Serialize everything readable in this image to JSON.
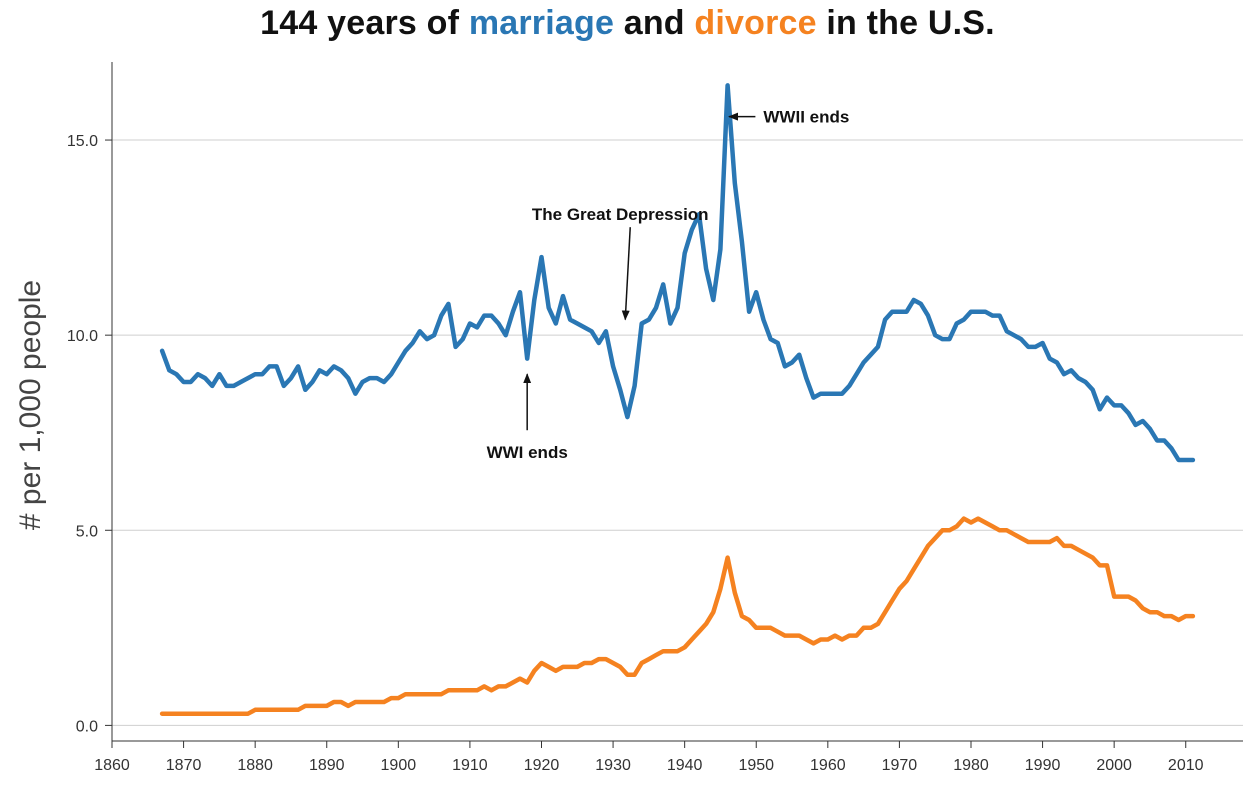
{
  "title": {
    "part1": "144 years of ",
    "marriage_word": "marriage",
    "part2": " and ",
    "divorce_word": "divorce",
    "part3": " in the U.S."
  },
  "colors": {
    "marriage": "#2a77b4",
    "divorce": "#f58220",
    "grid": "#cfcfcf",
    "axis": "#333333"
  },
  "chart_data": {
    "type": "line",
    "title": "144 years of marriage and divorce in the U.S.",
    "xlabel": "",
    "ylabel": "# per 1,000 people",
    "xlim": [
      1860,
      2018
    ],
    "ylim": [
      -0.4,
      17
    ],
    "x_ticks": [
      1860,
      1870,
      1880,
      1890,
      1900,
      1910,
      1920,
      1930,
      1940,
      1950,
      1960,
      1970,
      1980,
      1990,
      2000,
      2010
    ],
    "y_ticks": [
      0.0,
      5.0,
      10.0,
      15.0
    ],
    "y_tick_labels": [
      "0.0",
      "5.0",
      "10.0",
      "15.0"
    ],
    "grid": "horizontal",
    "series": [
      {
        "key": "marriage",
        "color": "#2a77b4",
        "points": [
          [
            1867,
            9.6
          ],
          [
            1868,
            9.1
          ],
          [
            1869,
            9.0
          ],
          [
            1870,
            8.8
          ],
          [
            1871,
            8.8
          ],
          [
            1872,
            9.0
          ],
          [
            1873,
            8.9
          ],
          [
            1874,
            8.7
          ],
          [
            1875,
            9.0
          ],
          [
            1876,
            8.7
          ],
          [
            1877,
            8.7
          ],
          [
            1878,
            8.8
          ],
          [
            1879,
            8.9
          ],
          [
            1880,
            9.0
          ],
          [
            1881,
            9.0
          ],
          [
            1882,
            9.2
          ],
          [
            1883,
            9.2
          ],
          [
            1884,
            8.7
          ],
          [
            1885,
            8.9
          ],
          [
            1886,
            9.2
          ],
          [
            1887,
            8.6
          ],
          [
            1888,
            8.8
          ],
          [
            1889,
            9.1
          ],
          [
            1890,
            9.0
          ],
          [
            1891,
            9.2
          ],
          [
            1892,
            9.1
          ],
          [
            1893,
            8.9
          ],
          [
            1894,
            8.5
          ],
          [
            1895,
            8.8
          ],
          [
            1896,
            8.9
          ],
          [
            1897,
            8.9
          ],
          [
            1898,
            8.8
          ],
          [
            1899,
            9.0
          ],
          [
            1900,
            9.3
          ],
          [
            1901,
            9.6
          ],
          [
            1902,
            9.8
          ],
          [
            1903,
            10.1
          ],
          [
            1904,
            9.9
          ],
          [
            1905,
            10.0
          ],
          [
            1906,
            10.5
          ],
          [
            1907,
            10.8
          ],
          [
            1908,
            9.7
          ],
          [
            1909,
            9.9
          ],
          [
            1910,
            10.3
          ],
          [
            1911,
            10.2
          ],
          [
            1912,
            10.5
          ],
          [
            1913,
            10.5
          ],
          [
            1914,
            10.3
          ],
          [
            1915,
            10.0
          ],
          [
            1916,
            10.6
          ],
          [
            1917,
            11.1
          ],
          [
            1918,
            9.4
          ],
          [
            1919,
            10.9
          ],
          [
            1920,
            12.0
          ],
          [
            1921,
            10.7
          ],
          [
            1922,
            10.3
          ],
          [
            1923,
            11.0
          ],
          [
            1924,
            10.4
          ],
          [
            1925,
            10.3
          ],
          [
            1926,
            10.2
          ],
          [
            1927,
            10.1
          ],
          [
            1928,
            9.8
          ],
          [
            1929,
            10.1
          ],
          [
            1930,
            9.2
          ],
          [
            1931,
            8.6
          ],
          [
            1932,
            7.9
          ],
          [
            1933,
            8.7
          ],
          [
            1934,
            10.3
          ],
          [
            1935,
            10.4
          ],
          [
            1936,
            10.7
          ],
          [
            1937,
            11.3
          ],
          [
            1938,
            10.3
          ],
          [
            1939,
            10.7
          ],
          [
            1940,
            12.1
          ],
          [
            1941,
            12.7
          ],
          [
            1942,
            13.1
          ],
          [
            1943,
            11.7
          ],
          [
            1944,
            10.9
          ],
          [
            1945,
            12.2
          ],
          [
            1946,
            16.4
          ],
          [
            1947,
            13.9
          ],
          [
            1948,
            12.4
          ],
          [
            1949,
            10.6
          ],
          [
            1950,
            11.1
          ],
          [
            1951,
            10.4
          ],
          [
            1952,
            9.9
          ],
          [
            1953,
            9.8
          ],
          [
            1954,
            9.2
          ],
          [
            1955,
            9.3
          ],
          [
            1956,
            9.5
          ],
          [
            1957,
            8.9
          ],
          [
            1958,
            8.4
          ],
          [
            1959,
            8.5
          ],
          [
            1960,
            8.5
          ],
          [
            1961,
            8.5
          ],
          [
            1962,
            8.5
          ],
          [
            1963,
            8.7
          ],
          [
            1964,
            9.0
          ],
          [
            1965,
            9.3
          ],
          [
            1966,
            9.5
          ],
          [
            1967,
            9.7
          ],
          [
            1968,
            10.4
          ],
          [
            1969,
            10.6
          ],
          [
            1970,
            10.6
          ],
          [
            1971,
            10.6
          ],
          [
            1972,
            10.9
          ],
          [
            1973,
            10.8
          ],
          [
            1974,
            10.5
          ],
          [
            1975,
            10.0
          ],
          [
            1976,
            9.9
          ],
          [
            1977,
            9.9
          ],
          [
            1978,
            10.3
          ],
          [
            1979,
            10.4
          ],
          [
            1980,
            10.6
          ],
          [
            1981,
            10.6
          ],
          [
            1982,
            10.6
          ],
          [
            1983,
            10.5
          ],
          [
            1984,
            10.5
          ],
          [
            1985,
            10.1
          ],
          [
            1986,
            10.0
          ],
          [
            1987,
            9.9
          ],
          [
            1988,
            9.7
          ],
          [
            1989,
            9.7
          ],
          [
            1990,
            9.8
          ],
          [
            1991,
            9.4
          ],
          [
            1992,
            9.3
          ],
          [
            1993,
            9.0
          ],
          [
            1994,
            9.1
          ],
          [
            1995,
            8.9
          ],
          [
            1996,
            8.8
          ],
          [
            1997,
            8.6
          ],
          [
            1998,
            8.1
          ],
          [
            1999,
            8.4
          ],
          [
            2000,
            8.2
          ],
          [
            2001,
            8.2
          ],
          [
            2002,
            8.0
          ],
          [
            2003,
            7.7
          ],
          [
            2004,
            7.8
          ],
          [
            2005,
            7.6
          ],
          [
            2006,
            7.3
          ],
          [
            2007,
            7.3
          ],
          [
            2008,
            7.1
          ],
          [
            2009,
            6.8
          ],
          [
            2010,
            6.8
          ],
          [
            2011,
            6.8
          ]
        ]
      },
      {
        "key": "divorce",
        "color": "#f58220",
        "points": [
          [
            1867,
            0.3
          ],
          [
            1870,
            0.3
          ],
          [
            1875,
            0.3
          ],
          [
            1879,
            0.3
          ],
          [
            1880,
            0.4
          ],
          [
            1885,
            0.4
          ],
          [
            1886,
            0.4
          ],
          [
            1887,
            0.5
          ],
          [
            1890,
            0.5
          ],
          [
            1891,
            0.6
          ],
          [
            1892,
            0.6
          ],
          [
            1893,
            0.5
          ],
          [
            1894,
            0.6
          ],
          [
            1898,
            0.6
          ],
          [
            1899,
            0.7
          ],
          [
            1900,
            0.7
          ],
          [
            1901,
            0.8
          ],
          [
            1906,
            0.8
          ],
          [
            1907,
            0.9
          ],
          [
            1910,
            0.9
          ],
          [
            1911,
            0.9
          ],
          [
            1912,
            1.0
          ],
          [
            1913,
            0.9
          ],
          [
            1914,
            1.0
          ],
          [
            1915,
            1.0
          ],
          [
            1916,
            1.1
          ],
          [
            1917,
            1.2
          ],
          [
            1918,
            1.1
          ],
          [
            1919,
            1.4
          ],
          [
            1920,
            1.6
          ],
          [
            1921,
            1.5
          ],
          [
            1922,
            1.4
          ],
          [
            1923,
            1.5
          ],
          [
            1924,
            1.5
          ],
          [
            1925,
            1.5
          ],
          [
            1926,
            1.6
          ],
          [
            1927,
            1.6
          ],
          [
            1928,
            1.7
          ],
          [
            1929,
            1.7
          ],
          [
            1930,
            1.6
          ],
          [
            1931,
            1.5
          ],
          [
            1932,
            1.3
          ],
          [
            1933,
            1.3
          ],
          [
            1934,
            1.6
          ],
          [
            1935,
            1.7
          ],
          [
            1936,
            1.8
          ],
          [
            1937,
            1.9
          ],
          [
            1938,
            1.9
          ],
          [
            1939,
            1.9
          ],
          [
            1940,
            2.0
          ],
          [
            1941,
            2.2
          ],
          [
            1942,
            2.4
          ],
          [
            1943,
            2.6
          ],
          [
            1944,
            2.9
          ],
          [
            1945,
            3.5
          ],
          [
            1946,
            4.3
          ],
          [
            1947,
            3.4
          ],
          [
            1948,
            2.8
          ],
          [
            1949,
            2.7
          ],
          [
            1950,
            2.5
          ],
          [
            1951,
            2.5
          ],
          [
            1952,
            2.5
          ],
          [
            1953,
            2.4
          ],
          [
            1954,
            2.3
          ],
          [
            1955,
            2.3
          ],
          [
            1956,
            2.3
          ],
          [
            1957,
            2.2
          ],
          [
            1958,
            2.1
          ],
          [
            1959,
            2.2
          ],
          [
            1960,
            2.2
          ],
          [
            1961,
            2.3
          ],
          [
            1962,
            2.2
          ],
          [
            1963,
            2.3
          ],
          [
            1964,
            2.3
          ],
          [
            1965,
            2.5
          ],
          [
            1966,
            2.5
          ],
          [
            1967,
            2.6
          ],
          [
            1968,
            2.9
          ],
          [
            1969,
            3.2
          ],
          [
            1970,
            3.5
          ],
          [
            1971,
            3.7
          ],
          [
            1972,
            4.0
          ],
          [
            1973,
            4.3
          ],
          [
            1974,
            4.6
          ],
          [
            1975,
            4.8
          ],
          [
            1976,
            5.0
          ],
          [
            1977,
            5.0
          ],
          [
            1978,
            5.1
          ],
          [
            1979,
            5.3
          ],
          [
            1980,
            5.2
          ],
          [
            1981,
            5.3
          ],
          [
            1982,
            5.2
          ],
          [
            1983,
            5.1
          ],
          [
            1984,
            5.0
          ],
          [
            1985,
            5.0
          ],
          [
            1986,
            4.9
          ],
          [
            1987,
            4.8
          ],
          [
            1988,
            4.7
          ],
          [
            1989,
            4.7
          ],
          [
            1990,
            4.7
          ],
          [
            1991,
            4.7
          ],
          [
            1992,
            4.8
          ],
          [
            1993,
            4.6
          ],
          [
            1994,
            4.6
          ],
          [
            1995,
            4.5
          ],
          [
            1996,
            4.4
          ],
          [
            1997,
            4.3
          ],
          [
            1998,
            4.1
          ],
          [
            1999,
            4.1
          ],
          [
            2000,
            3.3
          ],
          [
            2001,
            3.3
          ],
          [
            2002,
            3.3
          ],
          [
            2003,
            3.2
          ],
          [
            2004,
            3.0
          ],
          [
            2005,
            2.9
          ],
          [
            2006,
            2.9
          ],
          [
            2007,
            2.8
          ],
          [
            2008,
            2.8
          ],
          [
            2009,
            2.7
          ],
          [
            2010,
            2.8
          ],
          [
            2011,
            2.8
          ]
        ]
      }
    ],
    "annotations": [
      {
        "text": "WWII ends",
        "x": 1946.2,
        "y": 15.6,
        "text_x": 1951,
        "text_y": 15.6,
        "anchor": "start",
        "kind": "horizontal"
      },
      {
        "text": "The Great Depression",
        "x": 1931.7,
        "y": 10.4,
        "text_x": 1931,
        "text_y": 13.1,
        "anchor": "middle",
        "kind": "diagonal"
      },
      {
        "text": "WWI ends",
        "x": 1918,
        "y": 9.0,
        "text_x": 1918,
        "text_y": 7.0,
        "anchor": "middle",
        "kind": "vertical"
      }
    ]
  }
}
